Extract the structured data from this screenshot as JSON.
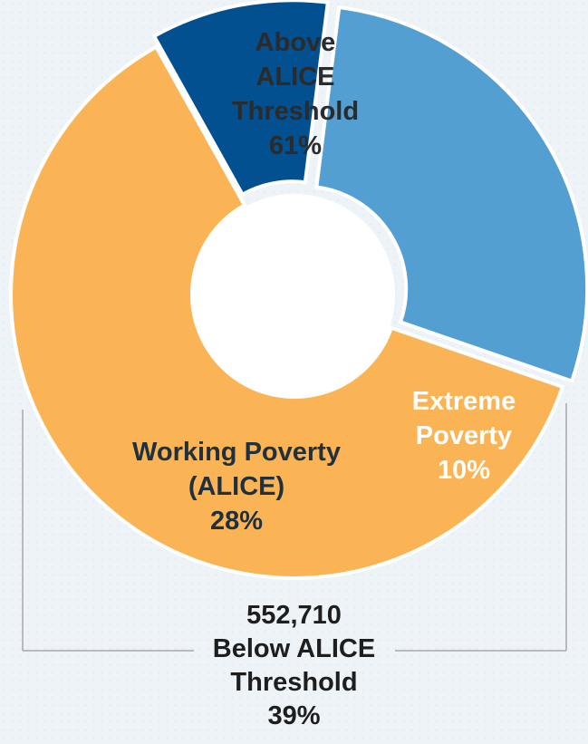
{
  "chart_data": {
    "type": "pie",
    "style": "donut",
    "grid": false,
    "legend": "none",
    "slices": [
      {
        "key": "above",
        "lines": [
          "Above",
          "ALICE",
          "Threshold",
          "61%"
        ],
        "value": 61,
        "color": "#fbb455",
        "text_color": "#2b2b2b"
      },
      {
        "key": "working",
        "lines": [
          "Working Poverty",
          "(ALICE)",
          "28%"
        ],
        "value": 28,
        "color": "#549fd2",
        "text_color": "#21303d"
      },
      {
        "key": "extreme",
        "lines": [
          "Extreme",
          "Poverty",
          "10%"
        ],
        "value": 10,
        "color": "#02508f",
        "text_color": "#ffffff"
      }
    ],
    "bracket": {
      "count": "552,710",
      "label_line1": "Below ALICE",
      "label_line2": "Threshold",
      "percent": "39%",
      "color": "#a8a8a8"
    }
  }
}
